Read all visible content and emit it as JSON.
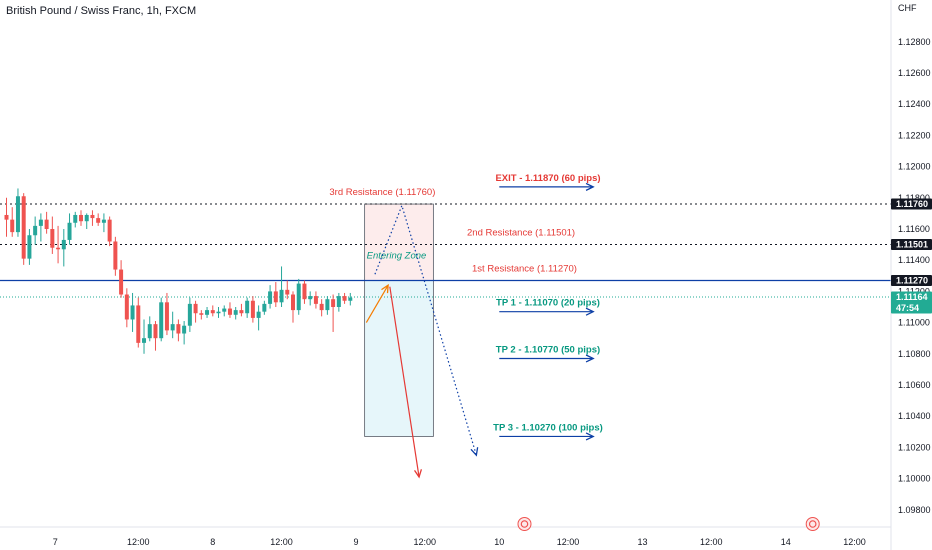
{
  "header": {
    "symbol": "British Pound / Swiss Franc, 1h, FXCM"
  },
  "colors": {
    "up": "#26a69a",
    "down": "#ef5350",
    "blue": "#0d3fa6",
    "red": "#e53935",
    "teal": "#089981",
    "orange": "#f57c00",
    "zone_red": "#fdecec",
    "zone_blue": "#e6f6fa",
    "tag_green": "#22ab94"
  },
  "chart_data": {
    "type": "candlestick",
    "currency_label": "CHF",
    "ylim": [
      1.0976,
      1.1294
    ],
    "y_ticks": [
      "1.12800",
      "1.12600",
      "1.12400",
      "1.12200",
      "1.12000",
      "1.11800",
      "1.11600",
      "1.11400",
      "1.11200",
      "1.11000",
      "1.10800",
      "1.10600",
      "1.10400",
      "1.10200",
      "1.10000",
      "1.09800"
    ],
    "y_tick_values": [
      1.128,
      1.126,
      1.124,
      1.122,
      1.12,
      1.118,
      1.116,
      1.114,
      1.112,
      1.11,
      1.108,
      1.106,
      1.104,
      1.102,
      1.1,
      1.098
    ],
    "x_ticks": [
      {
        "label": "7",
        "bar": 8.5
      },
      {
        "label": "12:00",
        "bar": 23
      },
      {
        "label": "8",
        "bar": 36
      },
      {
        "label": "12:00",
        "bar": 48
      },
      {
        "label": "9",
        "bar": 61
      },
      {
        "label": "12:00",
        "bar": 73
      },
      {
        "label": "10",
        "bar": 86
      },
      {
        "label": "12:00",
        "bar": 98
      },
      {
        "label": "13",
        "bar": 111
      },
      {
        "label": "12:00",
        "bar": 123
      },
      {
        "label": "14",
        "bar": 136
      },
      {
        "label": "12:00",
        "bar": 148
      }
    ],
    "candles": [
      [
        1.1169,
        1.118,
        1.1155,
        1.1166
      ],
      [
        1.1166,
        1.1174,
        1.1155,
        1.1158
      ],
      [
        1.1158,
        1.1186,
        1.1155,
        1.1181
      ],
      [
        1.1181,
        1.1183,
        1.1137,
        1.1141
      ],
      [
        1.1141,
        1.116,
        1.1137,
        1.1156
      ],
      [
        1.1156,
        1.1168,
        1.115,
        1.1162
      ],
      [
        1.1162,
        1.117,
        1.1152,
        1.1166
      ],
      [
        1.1166,
        1.1171,
        1.1157,
        1.116
      ],
      [
        1.116,
        1.1168,
        1.1144,
        1.1148
      ],
      [
        1.1148,
        1.1162,
        1.1138,
        1.1147
      ],
      [
        1.1147,
        1.116,
        1.1136,
        1.1153
      ],
      [
        1.1153,
        1.117,
        1.115,
        1.1164
      ],
      [
        1.1164,
        1.1171,
        1.1161,
        1.1169
      ],
      [
        1.1169,
        1.1172,
        1.1162,
        1.1165
      ],
      [
        1.1165,
        1.117,
        1.116,
        1.1169
      ],
      [
        1.1169,
        1.1172,
        1.1162,
        1.1167
      ],
      [
        1.1167,
        1.117,
        1.1162,
        1.1164
      ],
      [
        1.1164,
        1.117,
        1.1158,
        1.1166
      ],
      [
        1.1166,
        1.1168,
        1.1149,
        1.1152
      ],
      [
        1.1152,
        1.1155,
        1.113,
        1.1134
      ],
      [
        1.1134,
        1.114,
        1.1116,
        1.1118
      ],
      [
        1.1118,
        1.1122,
        1.1097,
        1.1102
      ],
      [
        1.1102,
        1.1119,
        1.1094,
        1.1111
      ],
      [
        1.1111,
        1.1116,
        1.1084,
        1.1087
      ],
      [
        1.1087,
        1.1102,
        1.108,
        1.109
      ],
      [
        1.109,
        1.1104,
        1.1088,
        1.1099
      ],
      [
        1.1099,
        1.1101,
        1.1082,
        1.109
      ],
      [
        1.109,
        1.1116,
        1.1088,
        1.1113
      ],
      [
        1.1113,
        1.1119,
        1.1092,
        1.1095
      ],
      [
        1.1095,
        1.1107,
        1.109,
        1.1099
      ],
      [
        1.1099,
        1.1102,
        1.1088,
        1.1093
      ],
      [
        1.1093,
        1.1101,
        1.1086,
        1.1098
      ],
      [
        1.1098,
        1.1116,
        1.1094,
        1.1112
      ],
      [
        1.1112,
        1.1114,
        1.11,
        1.1106
      ],
      [
        1.1106,
        1.1108,
        1.1102,
        1.1105
      ],
      [
        1.1105,
        1.111,
        1.1103,
        1.1108
      ],
      [
        1.1108,
        1.1111,
        1.1104,
        1.1106
      ],
      [
        1.1106,
        1.111,
        1.1103,
        1.1107
      ],
      [
        1.1107,
        1.1111,
        1.1104,
        1.1109
      ],
      [
        1.1109,
        1.1113,
        1.1103,
        1.1105
      ],
      [
        1.1105,
        1.111,
        1.1102,
        1.1108
      ],
      [
        1.1108,
        1.1112,
        1.1104,
        1.1106
      ],
      [
        1.1106,
        1.1116,
        1.1103,
        1.1114
      ],
      [
        1.1114,
        1.1117,
        1.11,
        1.1103
      ],
      [
        1.1103,
        1.1111,
        1.1095,
        1.1107
      ],
      [
        1.1107,
        1.1114,
        1.1105,
        1.1112
      ],
      [
        1.1112,
        1.1124,
        1.1109,
        1.112
      ],
      [
        1.112,
        1.1126,
        1.111,
        1.1113
      ],
      [
        1.1113,
        1.1136,
        1.111,
        1.1121
      ],
      [
        1.1121,
        1.1127,
        1.1115,
        1.1118
      ],
      [
        1.1118,
        1.112,
        1.11,
        1.1108
      ],
      [
        1.1108,
        1.1128,
        1.1105,
        1.1125
      ],
      [
        1.1125,
        1.1127,
        1.1112,
        1.1115
      ],
      [
        1.1115,
        1.112,
        1.1111,
        1.1117
      ],
      [
        1.1117,
        1.112,
        1.1109,
        1.1112
      ],
      [
        1.1112,
        1.1115,
        1.1104,
        1.1108
      ],
      [
        1.1108,
        1.1117,
        1.1105,
        1.1115
      ],
      [
        1.1115,
        1.1118,
        1.1094,
        1.111
      ],
      [
        1.111,
        1.1119,
        1.1107,
        1.1117
      ],
      [
        1.1117,
        1.1119,
        1.1112,
        1.1114
      ],
      [
        1.1114,
        1.1119,
        1.1111,
        1.1116
      ]
    ],
    "levels": [
      {
        "label": "1.11760",
        "value": 1.1176,
        "tag_bg": "#131722",
        "line_color": "#131722",
        "dash": "2,3"
      },
      {
        "label": "1.11501",
        "value": 1.11501,
        "tag_bg": "#131722",
        "line_color": "#131722",
        "dash": "2,3"
      },
      {
        "label": "1.11270",
        "value": 1.1127,
        "tag_bg": "#131722",
        "line_color": "#0d3fa6",
        "dash": ""
      },
      {
        "label": "1.11164",
        "value": 1.11164,
        "tag_bg": "#22ab94",
        "line_color": "#22ab94",
        "dash": "1,2"
      }
    ],
    "countdown": "47:54",
    "entry_zone": {
      "label": "Entering Zone",
      "upper": 1.1176,
      "mid": 1.1127,
      "lower": 1.1027,
      "bar_start": 62.5,
      "bar_end": 74.5
    },
    "resistances": [
      {
        "label": "3rd Resistance  (1.11760)",
        "value": 1.1176,
        "bar": 65.6
      },
      {
        "label": "2nd Resistance (1.11501)",
        "value": 1.11501,
        "bar": 89.8
      },
      {
        "label": "1st Resistance  (1.11270)",
        "value": 1.1127,
        "bar": 90.4
      }
    ],
    "targets": [
      {
        "label": "EXIT - 1.11870 (60 pips)",
        "value": 1.1187,
        "color": "#e53935",
        "arrow_bar_start": 86,
        "arrow_bar_end": 102.4,
        "label_bar": 94.5
      },
      {
        "label": "TP 1 - 1.11070 (20 pips)",
        "value": 1.1107,
        "color": "#089981",
        "arrow_bar_start": 86,
        "arrow_bar_end": 102.4,
        "label_bar": 94.5
      },
      {
        "label": "TP 2 - 1.10770 (50 pips)",
        "value": 1.1077,
        "color": "#089981",
        "arrow_bar_start": 86,
        "arrow_bar_end": 102.4,
        "label_bar": 94.5
      },
      {
        "label": "TP 3 - 1.10270 (100 pips)",
        "value": 1.1027,
        "color": "#089981",
        "arrow_bar_start": 86,
        "arrow_bar_end": 102.4,
        "label_bar": 94.5
      }
    ],
    "paths": [
      {
        "name": "orange-entry-arrow",
        "color": "#f57c00",
        "dash": "",
        "points": [
          [
            62.8,
            1.11
          ],
          [
            66.6,
            1.1124
          ]
        ]
      },
      {
        "name": "blue-dotted-path",
        "color": "#0d3fa6",
        "dash": "1.5,2.5",
        "points": [
          [
            64.3,
            1.1131
          ],
          [
            69,
            1.1175
          ],
          [
            82,
            1.1015
          ]
        ]
      },
      {
        "name": "red-drop-arrow",
        "color": "#e53935",
        "dash": "",
        "points": [
          [
            66.9,
            1.1123
          ],
          [
            72,
            1.1001
          ]
        ]
      }
    ],
    "event_markers": [
      {
        "bar": 90.4
      },
      {
        "bar": 140.7
      }
    ]
  }
}
